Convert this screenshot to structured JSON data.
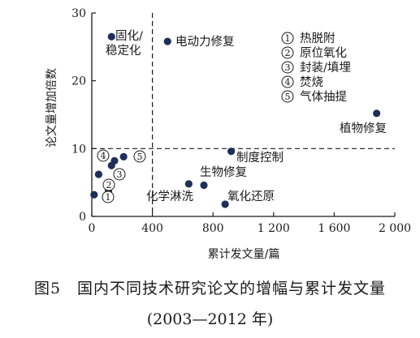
{
  "chart_data": {
    "type": "scatter",
    "xlabel": "累计发文量/篇",
    "ylabel": "论文量增加倍数",
    "xlim": [
      0,
      2000
    ],
    "ylim": [
      0,
      30
    ],
    "xticks": [
      0,
      400,
      800,
      1200,
      1600,
      2000
    ],
    "xtick_labels": [
      "0",
      "400",
      "800",
      "1 200",
      "1 600",
      "2 000"
    ],
    "yticks": [
      0,
      10,
      20,
      30
    ],
    "ytick_labels": [
      "0",
      "10",
      "20",
      "30"
    ],
    "reference_lines": [
      {
        "orientation": "vertical",
        "value": 400,
        "style": "dashed"
      },
      {
        "orientation": "horizontal",
        "value": 10,
        "style": "dashed"
      }
    ],
    "points": [
      {
        "x": 130,
        "y": 26.5,
        "label": "固化/\n稳定化"
      },
      {
        "x": 500,
        "y": 25.8,
        "label": "电动力修复"
      },
      {
        "x": 1880,
        "y": 15.2,
        "label": "植物修复"
      },
      {
        "x": 920,
        "y": 9.6,
        "label": "制度控制"
      },
      {
        "x": 640,
        "y": 4.8,
        "label": "生物修复"
      },
      {
        "x": 740,
        "y": 4.6,
        "label": ""
      },
      {
        "x": 880,
        "y": 1.8,
        "label": "化学淋洗"
      },
      {
        "x": 15,
        "y": 3.2,
        "label": "①"
      },
      {
        "x": 45,
        "y": 6.2,
        "label": ""
      },
      {
        "x": 110,
        "y": 3.8,
        "label": "②"
      },
      {
        "x": 130,
        "y": 7.5,
        "label": "③"
      },
      {
        "x": 150,
        "y": 8.2,
        "label": "④"
      },
      {
        "x": 210,
        "y": 8.8,
        "label": "⑤"
      }
    ],
    "extra_labels": [
      "氧化还原"
    ],
    "legend": [
      {
        "marker": "①",
        "text": "热脱附"
      },
      {
        "marker": "②",
        "text": "原位氧化"
      },
      {
        "marker": "③",
        "text": "封装/填埋"
      },
      {
        "marker": "④",
        "text": "焚烧"
      },
      {
        "marker": "⑤",
        "text": "气体抽提"
      }
    ],
    "point_color": "#1f2f5a"
  },
  "caption": {
    "line1": "图5　国内不同技术研究论文的增幅与累计发文量",
    "line2": "(2003—2012 年)"
  }
}
